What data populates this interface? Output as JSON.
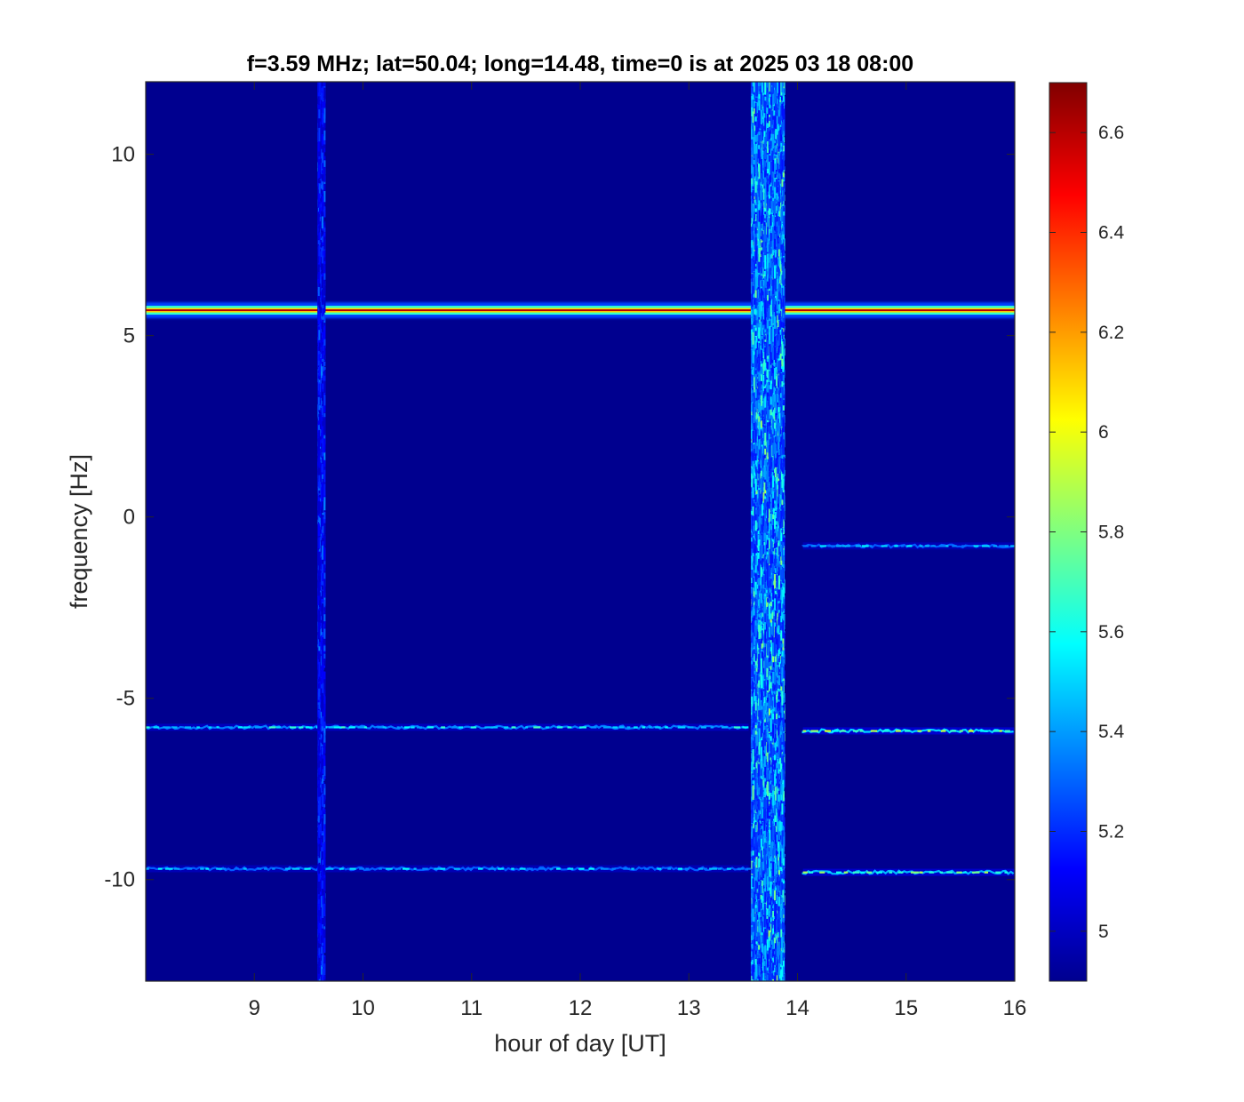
{
  "chart_data": {
    "type": "heatmap",
    "title": "f=3.59 MHz;  lat=50.04; long=14.48, time=0 is at 2025 03 18 08:00",
    "xlabel": "hour of day [UT]",
    "ylabel": "frequency [Hz]",
    "xlim": [
      8,
      16
    ],
    "ylim": [
      -12.8,
      12
    ],
    "x_ticks": [
      "9",
      "10",
      "11",
      "12",
      "13",
      "14",
      "15",
      "16"
    ],
    "y_ticks": [
      "10",
      "5",
      "0",
      "-5",
      "-10"
    ],
    "colorbar": {
      "colormap": "jet",
      "limits": [
        4.9,
        6.7
      ],
      "ticks": [
        "5",
        "5.2",
        "5.4",
        "5.6",
        "5.8",
        "6",
        "6.2",
        "6.4",
        "6.6"
      ]
    },
    "background_value": 4.9,
    "features": [
      {
        "kind": "horizontal_line",
        "frequency": 5.7,
        "x_start": 8.0,
        "x_end": 16.0,
        "peak_value": 6.6
      },
      {
        "kind": "horizontal_line",
        "frequency": -0.8,
        "x_start": 14.05,
        "x_end": 16.0,
        "peak_value": 5.6
      },
      {
        "kind": "horizontal_line",
        "frequency": -5.8,
        "x_start": 8.0,
        "x_end": 13.55,
        "peak_value": 5.7
      },
      {
        "kind": "horizontal_line",
        "frequency": -5.9,
        "x_start": 14.05,
        "x_end": 16.0,
        "peak_value": 6.0
      },
      {
        "kind": "horizontal_line",
        "frequency": -9.7,
        "x_start": 8.0,
        "x_end": 13.55,
        "peak_value": 5.6
      },
      {
        "kind": "horizontal_line",
        "frequency": -9.8,
        "x_start": 14.05,
        "x_end": 16.0,
        "peak_value": 5.9
      },
      {
        "kind": "vertical_band",
        "x_start": 9.58,
        "x_end": 9.64,
        "peak_value": 5.4
      },
      {
        "kind": "vertical_band",
        "x_start": 13.57,
        "x_end": 13.87,
        "peak_value": 5.9
      }
    ]
  }
}
